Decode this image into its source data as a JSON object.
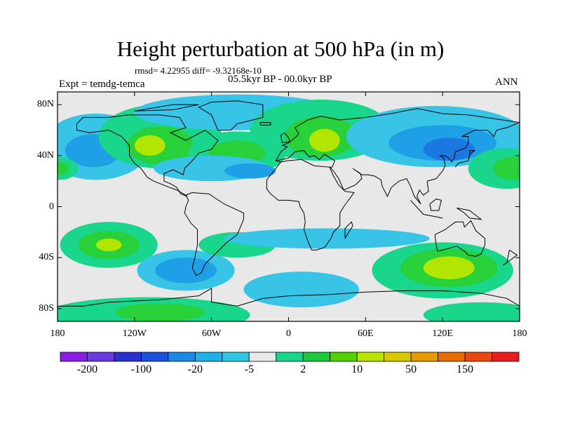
{
  "title": "Height perturbation at 500 hPa (in m)",
  "stats": "rmsd= 4.22955  diff= -9.32168e-10",
  "experiment": "Expt = temdg-temca",
  "period": "05.5kyr BP - 00.0kyr BP",
  "season": "ANN",
  "y_ticks": [
    "80N",
    "40N",
    "0",
    "40S",
    "80S"
  ],
  "x_ticks": [
    "180",
    "120W",
    "60W",
    "0",
    "60E",
    "120E",
    "180"
  ],
  "colorbar": {
    "labels": [
      "-200",
      "-100",
      "-20",
      "-5",
      "2",
      "10",
      "50",
      "150"
    ],
    "colors": [
      "#8a1ee6",
      "#6a3ae0",
      "#2a2fd0",
      "#1a52e0",
      "#1a8ae6",
      "#1fb0e6",
      "#2ec6e6",
      "#e8e8e8",
      "#19d68c",
      "#1ac83a",
      "#52d200",
      "#b6e600",
      "#d8c800",
      "#e89a00",
      "#e86a00",
      "#e84a10",
      "#e81e1e"
    ]
  },
  "palette": {
    "neutral": "#e8e8e8",
    "light_blue": "#38c4e6",
    "mid_blue": "#1f9fe6",
    "dark_blue": "#1a78e0",
    "teal": "#19d68c",
    "green": "#28d03a",
    "yellow_green": "#b0e600",
    "coast": "#000000"
  }
}
